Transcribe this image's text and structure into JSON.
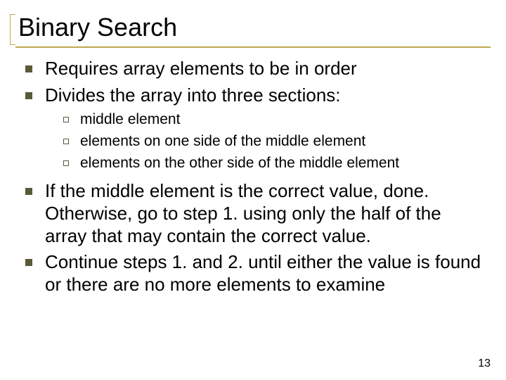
{
  "colors": {
    "accent": "#c0a952",
    "bullet_fill": "#5a5a3a",
    "bullet_border": "#5a5a3a",
    "text": "#000000",
    "background": "#ffffff"
  },
  "typography": {
    "title_fontsize": 36,
    "lvl1_fontsize": 26,
    "lvl2_fontsize": 21,
    "pagenum_fontsize": 16,
    "font_family": "Arial"
  },
  "title": "Binary Search",
  "bullets": {
    "b1": "Requires array elements to be in order",
    "b2": "Divides the array into three sections:",
    "b2_sub": {
      "s1": "middle element",
      "s2": "elements on one side of the middle element",
      "s3": "elements on the other side of the middle element"
    },
    "b3": "If the middle element is the correct value, done. Otherwise, go to step 1. using only the half of the array that may contain the correct value.",
    "b4": "Continue steps 1. and 2. until either the value is found or there are no more elements to examine"
  },
  "page_number": "13"
}
